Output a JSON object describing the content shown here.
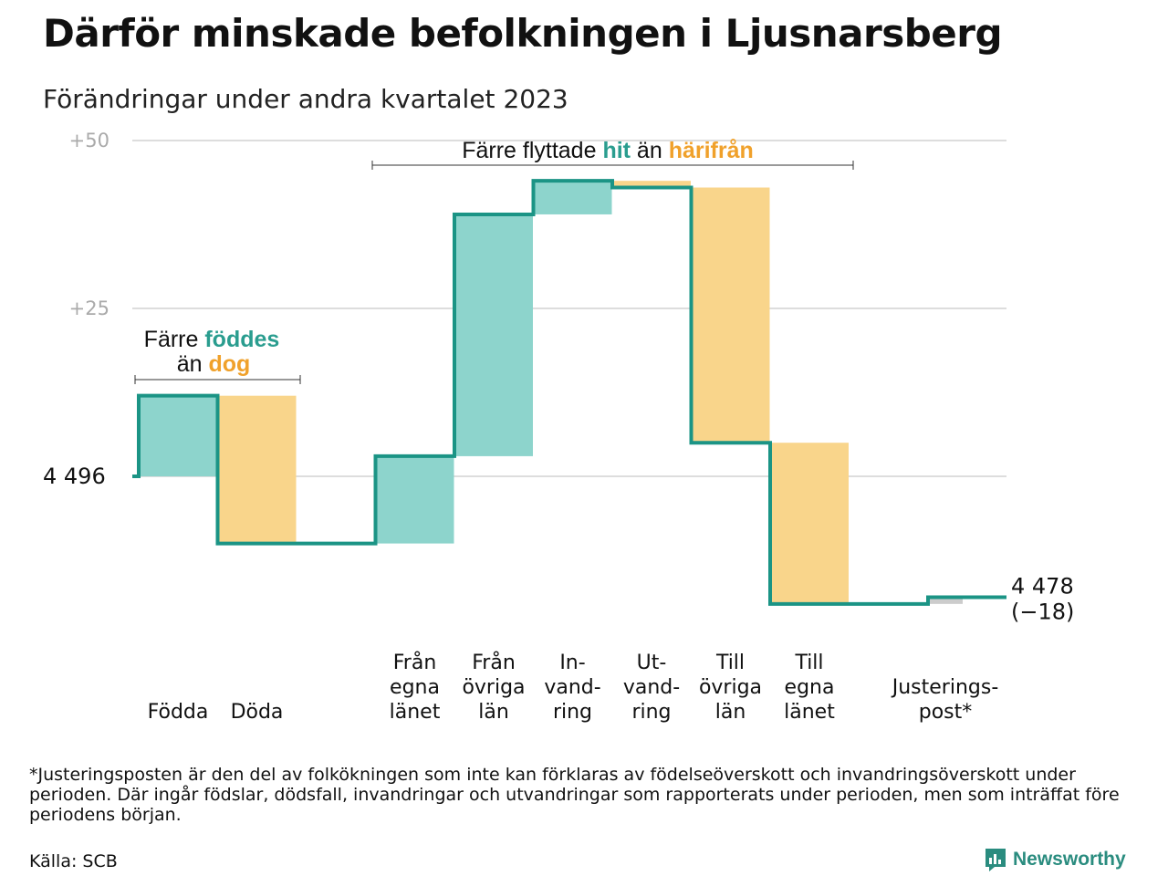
{
  "title": "Därför minskade befolkningen i Ljusnarsberg",
  "subtitle": "Förändringar under andra kvartalet 2023",
  "colors": {
    "teal_fill": "#8dd4cc",
    "orange_fill": "#f9d58b",
    "line": "#1b9485",
    "grid": "#dddddd",
    "adjust_fill": "#cccccc",
    "accent_teal": "#2a9d8f",
    "accent_orange": "#f0a12b"
  },
  "chart_data": {
    "type": "waterfall",
    "start_value": 4496,
    "start_label": "4  496",
    "end_label": "4 478",
    "end_change": "(−18)",
    "y_ticks": [
      {
        "value": 4521,
        "label": "+25"
      },
      {
        "value": 4546,
        "label": "+50"
      }
    ],
    "gridlines": [
      4496,
      4521,
      4546
    ],
    "ylim": [
      4474,
      4549
    ],
    "steps": [
      {
        "label_lines": [
          "Födda"
        ],
        "change": 12
      },
      {
        "label_lines": [
          "Döda"
        ],
        "change": -22
      },
      {
        "label_lines": [
          "Från",
          "egna",
          "länet"
        ],
        "change": 13
      },
      {
        "label_lines": [
          "Från",
          "övriga",
          "län"
        ],
        "change": 36
      },
      {
        "label_lines": [
          "In-",
          "vand-",
          "ring"
        ],
        "change": 5
      },
      {
        "label_lines": [
          "Ut-",
          "vand-",
          "ring"
        ],
        "change": -1
      },
      {
        "label_lines": [
          "Till",
          "övriga",
          "län"
        ],
        "change": -38
      },
      {
        "label_lines": [
          "Till",
          "egna",
          "länet"
        ],
        "change": -24
      },
      {
        "label_lines": [
          "Justerings-",
          "post*"
        ],
        "change": 1
      }
    ],
    "annotations": [
      {
        "line1_prefix": "Färre ",
        "line1_highlight": "föddes",
        "line2_prefix": "än ",
        "line2_highlight": "dog"
      },
      {
        "prefix": "Färre flyttade ",
        "highlight1": "hit",
        "middle": " än ",
        "highlight2": "härifrån"
      }
    ]
  },
  "footnote": "*Justeringsposten är den del av folkökningen som inte kan förklaras av födelseöverskott och invandringsöverskott under perioden. Där ingår födslar, dödsfall, invandringar och utvandringar som rapporterats under perioden, men som inträffat före periodens början.",
  "source": "Källa: SCB",
  "logo": {
    "text": "Newsworthy",
    "icon": "bar-chart-speech-icon"
  }
}
